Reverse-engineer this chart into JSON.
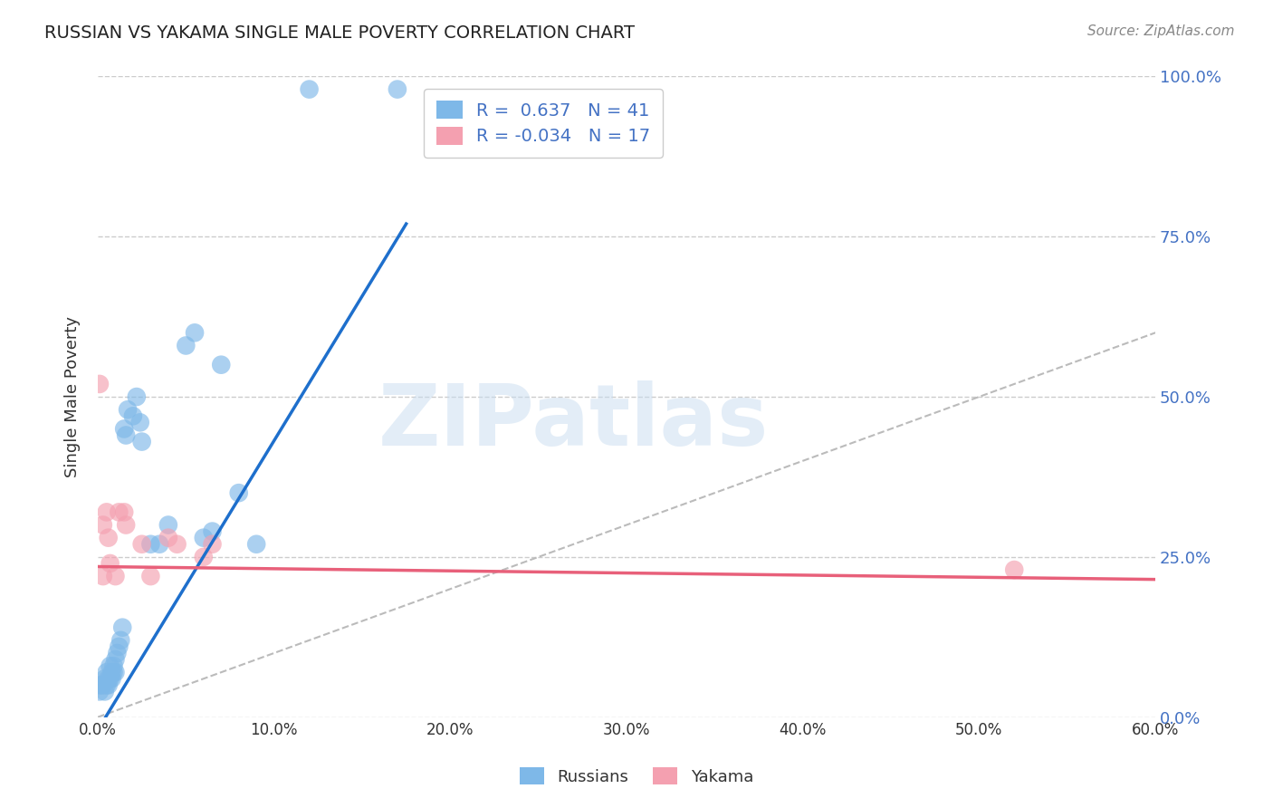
{
  "title": "RUSSIAN VS YAKAMA SINGLE MALE POVERTY CORRELATION CHART",
  "source": "Source: ZipAtlas.com",
  "ylabel": "Single Male Poverty",
  "xlabel_ticks": [
    "0.0%",
    "10.0%",
    "20.0%",
    "30.0%",
    "40.0%",
    "50.0%",
    "60.0%"
  ],
  "xlabel_vals": [
    0.0,
    0.1,
    0.2,
    0.3,
    0.4,
    0.5,
    0.6
  ],
  "ylabel_ticks": [
    "0.0%",
    "25.0%",
    "50.0%",
    "75.0%",
    "100.0%"
  ],
  "ylabel_vals": [
    0.0,
    0.25,
    0.5,
    0.75,
    1.0
  ],
  "xlim": [
    0.0,
    0.6
  ],
  "ylim": [
    0.0,
    1.0
  ],
  "legend_R_russian": "0.637",
  "legend_N_russian": "41",
  "legend_R_yakama": "-0.034",
  "legend_N_yakama": "17",
  "russian_color": "#7EB8E8",
  "yakama_color": "#F4A0B0",
  "russian_line_color": "#1E6FCC",
  "yakama_line_color": "#E8607A",
  "diagonal_color": "#BBBBBB",
  "watermark": "ZIPatlas",
  "russians_x": [
    0.001,
    0.001,
    0.002,
    0.003,
    0.004,
    0.004,
    0.005,
    0.005,
    0.006,
    0.006,
    0.007,
    0.007,
    0.008,
    0.008,
    0.009,
    0.009,
    0.01,
    0.01,
    0.011,
    0.012,
    0.013,
    0.014,
    0.015,
    0.016,
    0.017,
    0.02,
    0.022,
    0.024,
    0.025,
    0.03,
    0.035,
    0.04,
    0.05,
    0.055,
    0.06,
    0.065,
    0.07,
    0.08,
    0.09,
    0.12,
    0.17
  ],
  "russians_y": [
    0.05,
    0.04,
    0.05,
    0.05,
    0.06,
    0.04,
    0.07,
    0.05,
    0.06,
    0.05,
    0.08,
    0.06,
    0.07,
    0.06,
    0.08,
    0.07,
    0.09,
    0.07,
    0.1,
    0.11,
    0.12,
    0.14,
    0.45,
    0.44,
    0.48,
    0.47,
    0.5,
    0.46,
    0.43,
    0.27,
    0.27,
    0.3,
    0.58,
    0.6,
    0.28,
    0.29,
    0.55,
    0.35,
    0.27,
    0.98,
    0.98
  ],
  "yakama_x": [
    0.001,
    0.003,
    0.003,
    0.005,
    0.006,
    0.007,
    0.01,
    0.012,
    0.015,
    0.016,
    0.025,
    0.03,
    0.04,
    0.045,
    0.06,
    0.065,
    0.52
  ],
  "yakama_y": [
    0.52,
    0.22,
    0.3,
    0.32,
    0.28,
    0.24,
    0.22,
    0.32,
    0.32,
    0.3,
    0.27,
    0.22,
    0.28,
    0.27,
    0.25,
    0.27,
    0.23
  ],
  "russian_line_x0": 0.0,
  "russian_line_y0": -0.02,
  "russian_line_x1": 0.175,
  "russian_line_y1": 0.77,
  "yakama_line_x0": 0.0,
  "yakama_line_y0": 0.235,
  "yakama_line_x1": 0.6,
  "yakama_line_y1": 0.215
}
